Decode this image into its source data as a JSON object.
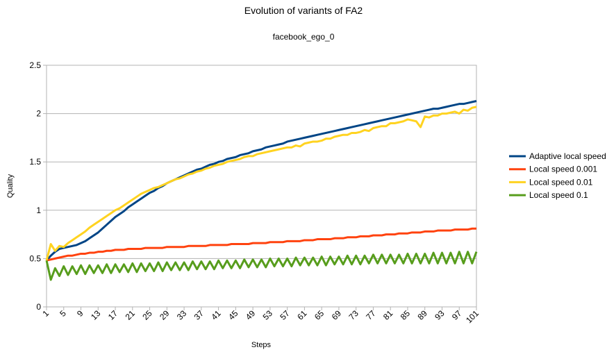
{
  "chart_data": {
    "type": "line",
    "title": "Evolution of variants of FA2",
    "subtitle": "facebook_ego_0",
    "x_label": "Steps",
    "y_label": "Quality",
    "x": [
      1,
      2,
      3,
      4,
      5,
      6,
      7,
      8,
      9,
      10,
      11,
      12,
      13,
      14,
      15,
      16,
      17,
      18,
      19,
      20,
      21,
      22,
      23,
      24,
      25,
      26,
      27,
      28,
      29,
      30,
      31,
      32,
      33,
      34,
      35,
      36,
      37,
      38,
      39,
      40,
      41,
      42,
      43,
      44,
      45,
      46,
      47,
      48,
      49,
      50,
      51,
      52,
      53,
      54,
      55,
      56,
      57,
      58,
      59,
      60,
      61,
      62,
      63,
      64,
      65,
      66,
      67,
      68,
      69,
      70,
      71,
      72,
      73,
      74,
      75,
      76,
      77,
      78,
      79,
      80,
      81,
      82,
      83,
      84,
      85,
      86,
      87,
      88,
      89,
      90,
      91,
      92,
      93,
      94,
      95,
      96,
      97,
      98,
      99,
      100,
      101
    ],
    "xlim": [
      1,
      101
    ],
    "xticks": [
      1,
      5,
      9,
      13,
      17,
      21,
      25,
      29,
      33,
      37,
      41,
      45,
      49,
      53,
      57,
      61,
      65,
      69,
      73,
      77,
      81,
      85,
      89,
      93,
      97,
      101
    ],
    "ylim": [
      0,
      2.5
    ],
    "yticks": [
      0,
      0.5,
      1,
      1.5,
      2,
      2.5
    ],
    "grid": true,
    "legend": "right",
    "series": [
      {
        "name": "Adaptive local speed",
        "color": "#004586",
        "values": [
          0.48,
          0.53,
          0.57,
          0.6,
          0.61,
          0.62,
          0.63,
          0.64,
          0.66,
          0.68,
          0.71,
          0.74,
          0.77,
          0.81,
          0.85,
          0.89,
          0.93,
          0.96,
          0.99,
          1.03,
          1.06,
          1.09,
          1.12,
          1.15,
          1.18,
          1.2,
          1.23,
          1.25,
          1.28,
          1.3,
          1.32,
          1.34,
          1.36,
          1.38,
          1.4,
          1.42,
          1.43,
          1.45,
          1.47,
          1.48,
          1.5,
          1.51,
          1.53,
          1.54,
          1.55,
          1.57,
          1.58,
          1.59,
          1.61,
          1.62,
          1.63,
          1.65,
          1.66,
          1.67,
          1.68,
          1.69,
          1.71,
          1.72,
          1.73,
          1.74,
          1.75,
          1.76,
          1.77,
          1.78,
          1.79,
          1.8,
          1.81,
          1.82,
          1.83,
          1.84,
          1.85,
          1.86,
          1.87,
          1.88,
          1.89,
          1.9,
          1.91,
          1.92,
          1.93,
          1.94,
          1.95,
          1.96,
          1.97,
          1.98,
          1.99,
          2.0,
          2.01,
          2.02,
          2.03,
          2.04,
          2.05,
          2.05,
          2.06,
          2.07,
          2.08,
          2.09,
          2.1,
          2.1,
          2.11,
          2.12,
          2.13
        ]
      },
      {
        "name": "Local speed 0.001",
        "color": "#ff420e",
        "values": [
          0.48,
          0.49,
          0.5,
          0.51,
          0.52,
          0.53,
          0.53,
          0.54,
          0.55,
          0.55,
          0.56,
          0.56,
          0.57,
          0.57,
          0.58,
          0.58,
          0.59,
          0.59,
          0.59,
          0.6,
          0.6,
          0.6,
          0.6,
          0.61,
          0.61,
          0.61,
          0.61,
          0.61,
          0.62,
          0.62,
          0.62,
          0.62,
          0.62,
          0.63,
          0.63,
          0.63,
          0.63,
          0.63,
          0.64,
          0.64,
          0.64,
          0.64,
          0.64,
          0.65,
          0.65,
          0.65,
          0.65,
          0.65,
          0.66,
          0.66,
          0.66,
          0.66,
          0.67,
          0.67,
          0.67,
          0.67,
          0.68,
          0.68,
          0.68,
          0.68,
          0.69,
          0.69,
          0.69,
          0.7,
          0.7,
          0.7,
          0.7,
          0.71,
          0.71,
          0.71,
          0.72,
          0.72,
          0.72,
          0.73,
          0.73,
          0.73,
          0.74,
          0.74,
          0.74,
          0.75,
          0.75,
          0.75,
          0.76,
          0.76,
          0.76,
          0.77,
          0.77,
          0.77,
          0.78,
          0.78,
          0.78,
          0.79,
          0.79,
          0.79,
          0.79,
          0.8,
          0.8,
          0.8,
          0.8,
          0.81,
          0.81
        ]
      },
      {
        "name": "Local speed 0.01",
        "color": "#ffd320",
        "values": [
          0.48,
          0.65,
          0.58,
          0.63,
          0.62,
          0.66,
          0.69,
          0.72,
          0.75,
          0.78,
          0.82,
          0.85,
          0.88,
          0.91,
          0.94,
          0.97,
          1.0,
          1.02,
          1.05,
          1.08,
          1.11,
          1.14,
          1.17,
          1.19,
          1.21,
          1.23,
          1.24,
          1.26,
          1.28,
          1.3,
          1.32,
          1.33,
          1.35,
          1.37,
          1.38,
          1.4,
          1.41,
          1.43,
          1.44,
          1.46,
          1.47,
          1.48,
          1.5,
          1.51,
          1.52,
          1.53,
          1.55,
          1.56,
          1.56,
          1.58,
          1.59,
          1.6,
          1.61,
          1.62,
          1.63,
          1.64,
          1.65,
          1.65,
          1.67,
          1.66,
          1.69,
          1.7,
          1.71,
          1.71,
          1.72,
          1.74,
          1.74,
          1.76,
          1.77,
          1.78,
          1.78,
          1.8,
          1.8,
          1.81,
          1.83,
          1.82,
          1.85,
          1.86,
          1.87,
          1.87,
          1.9,
          1.9,
          1.91,
          1.92,
          1.94,
          1.93,
          1.92,
          1.86,
          1.97,
          1.96,
          1.98,
          1.98,
          2.0,
          2.0,
          2.01,
          2.02,
          2.0,
          2.04,
          2.03,
          2.06,
          2.07
        ]
      },
      {
        "name": "Local speed 0.1",
        "color": "#579d1c",
        "values": [
          0.48,
          0.28,
          0.4,
          0.32,
          0.42,
          0.33,
          0.42,
          0.34,
          0.43,
          0.34,
          0.43,
          0.35,
          0.43,
          0.35,
          0.44,
          0.35,
          0.44,
          0.36,
          0.44,
          0.36,
          0.45,
          0.36,
          0.45,
          0.37,
          0.45,
          0.37,
          0.46,
          0.37,
          0.46,
          0.38,
          0.46,
          0.38,
          0.46,
          0.38,
          0.47,
          0.39,
          0.47,
          0.39,
          0.47,
          0.39,
          0.48,
          0.4,
          0.48,
          0.4,
          0.48,
          0.4,
          0.49,
          0.41,
          0.49,
          0.41,
          0.49,
          0.41,
          0.5,
          0.42,
          0.5,
          0.42,
          0.5,
          0.42,
          0.51,
          0.43,
          0.51,
          0.43,
          0.51,
          0.43,
          0.52,
          0.43,
          0.52,
          0.44,
          0.52,
          0.44,
          0.53,
          0.44,
          0.53,
          0.44,
          0.53,
          0.45,
          0.54,
          0.45,
          0.54,
          0.45,
          0.54,
          0.45,
          0.54,
          0.45,
          0.55,
          0.45,
          0.55,
          0.45,
          0.55,
          0.45,
          0.56,
          0.45,
          0.56,
          0.45,
          0.56,
          0.45,
          0.57,
          0.45,
          0.57,
          0.45,
          0.57
        ]
      }
    ]
  }
}
